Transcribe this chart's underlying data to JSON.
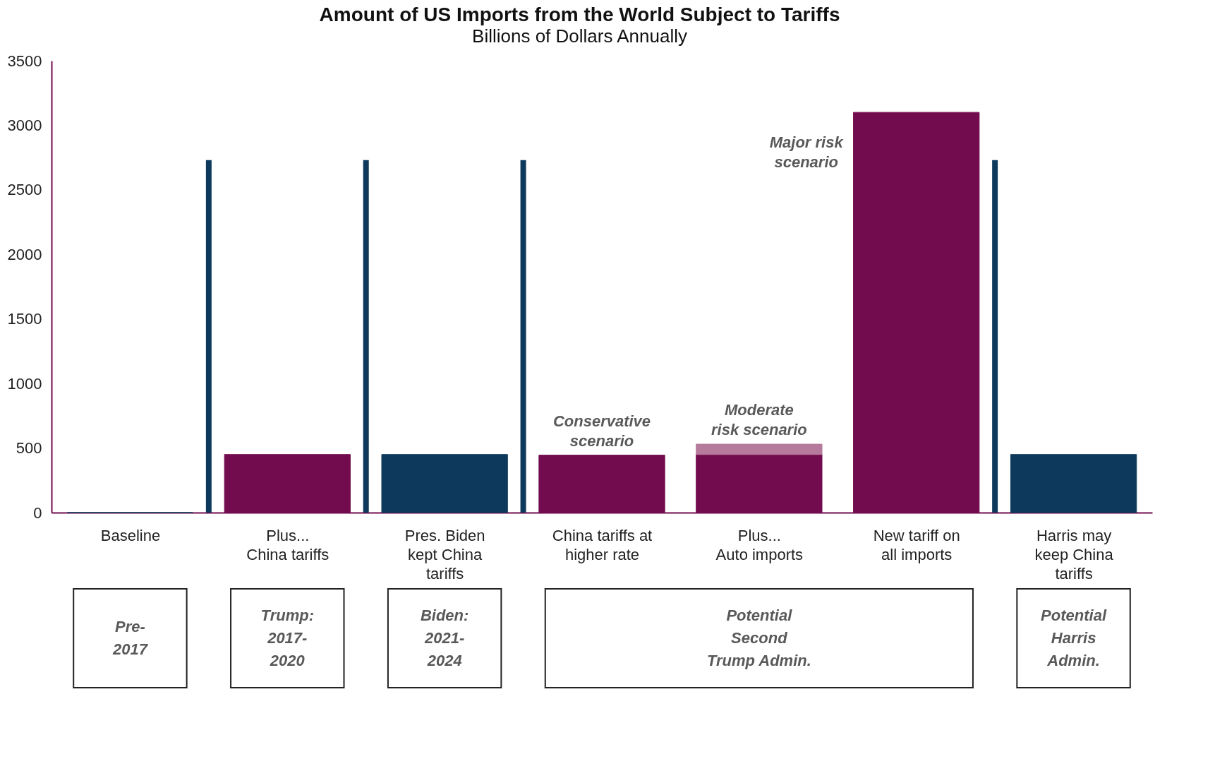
{
  "chart_data": {
    "type": "bar",
    "title": "Amount of US Imports from the World Subject to Tariffs",
    "subtitle": "Billions of Dollars Annually",
    "categories": [
      "Baseline",
      "Plus...\nChina tariffs",
      "Pres. Biden\nkept China\ntariffs",
      "China tariffs at\nhigher rate",
      "Plus...\nAuto imports",
      "New tariff on\nall imports",
      "Harris may\nkeep China\ntariffs"
    ],
    "stacked": true,
    "series": [
      {
        "colors": [
          "#0d3a5c",
          "#730c4e",
          "#0d3a5c",
          "#730c4e",
          "#730c4e",
          "#730c4e",
          "#0d3a5c"
        ],
        "values": [
          0,
          450,
          450,
          445,
          450,
          3100,
          450
        ]
      },
      {
        "color": "#b57a9c",
        "values": [
          null,
          null,
          null,
          null,
          80,
          null,
          null
        ]
      }
    ],
    "ylim": [
      0,
      3500
    ],
    "yticks": [
      0,
      500,
      1000,
      1500,
      2000,
      2500,
      3000,
      3500
    ],
    "annotations": [
      "Conservative\nscenario",
      "Moderate\nrisk scenario",
      "Major risk\nscenario",
      "Pre-\n2017",
      "Trump:\n2017-\n2020",
      "Biden:\n2021-\n2024",
      "Potential\nSecond\nTrump Admin.",
      "Potential\nHarris\nAdmin."
    ]
  }
}
